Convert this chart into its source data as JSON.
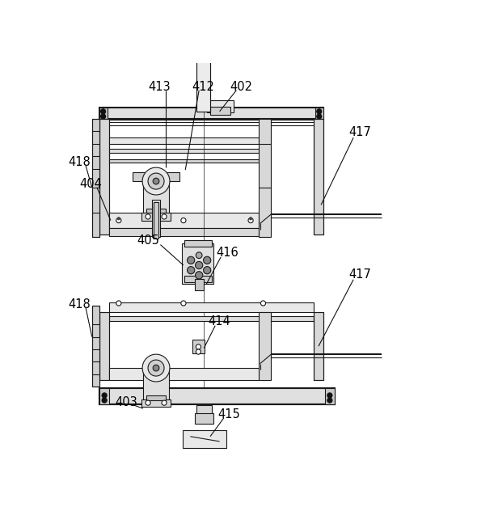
{
  "bg_color": "#ffffff",
  "lc": "#1a1a1a",
  "figsize": [
    5.9,
    6.48
  ],
  "dpi": 100,
  "lw": 0.8,
  "tlw": 1.5
}
